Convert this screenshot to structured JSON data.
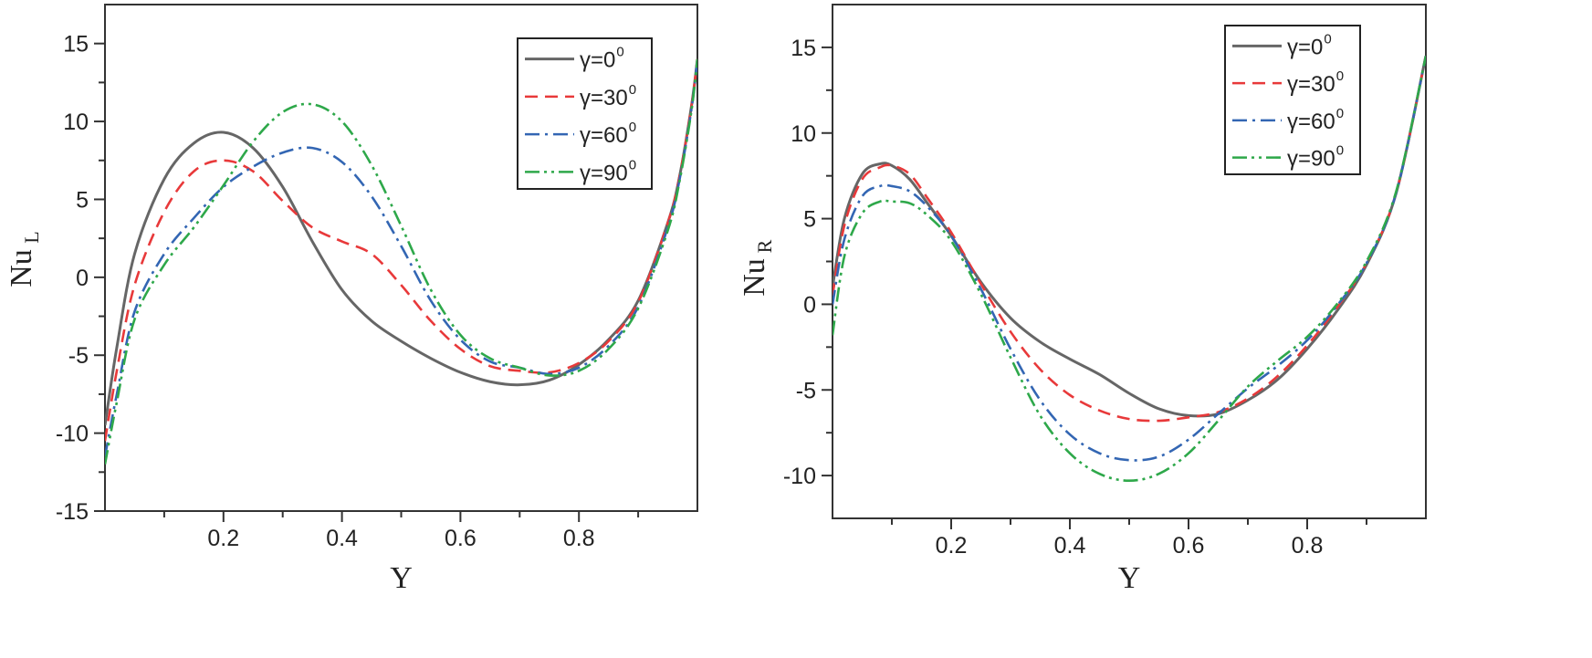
{
  "chart_data": [
    {
      "type": "line",
      "name": "left",
      "xlabel": "Y",
      "ylabel_main": "Nu",
      "ylabel_sub": "L",
      "xlim": [
        0.0,
        1.0
      ],
      "ylim": [
        -15,
        17.5
      ],
      "xticks": [
        0.2,
        0.4,
        0.6,
        0.8
      ],
      "xtick_labels": [
        "0.2",
        "0.4",
        "0.6",
        "0.8"
      ],
      "yticks": [
        -15,
        -10,
        -5,
        0,
        5,
        10,
        15
      ],
      "ytick_labels": [
        "-15",
        "-10",
        "-5",
        "0",
        "5",
        "10",
        "15"
      ],
      "legend_position": "top-right",
      "series": [
        {
          "name": "γ=0",
          "sup": "0",
          "color": "#666666",
          "dash": "solid",
          "x": [
            0.0,
            0.02,
            0.05,
            0.1,
            0.15,
            0.2,
            0.25,
            0.3,
            0.35,
            0.4,
            0.45,
            0.5,
            0.55,
            0.6,
            0.65,
            0.7,
            0.75,
            0.8,
            0.85,
            0.9,
            0.95,
            0.97,
            0.99,
            1.0
          ],
          "y": [
            -9.5,
            -4.5,
            1.5,
            6.3,
            8.6,
            9.3,
            8.3,
            5.8,
            2.3,
            -0.8,
            -2.8,
            -4.1,
            -5.2,
            -6.1,
            -6.7,
            -6.9,
            -6.6,
            -5.6,
            -4.0,
            -1.5,
            3.5,
            6.5,
            11.0,
            14.0
          ]
        },
        {
          "name": "γ=30",
          "sup": "0",
          "color": "#e8393a",
          "dash": "dashed",
          "x": [
            0.0,
            0.02,
            0.05,
            0.1,
            0.15,
            0.2,
            0.25,
            0.3,
            0.35,
            0.4,
            0.45,
            0.5,
            0.55,
            0.6,
            0.65,
            0.7,
            0.75,
            0.8,
            0.85,
            0.9,
            0.95,
            0.97,
            0.99,
            1.0
          ],
          "y": [
            -10.5,
            -6.0,
            -0.5,
            4.2,
            6.8,
            7.5,
            6.8,
            4.9,
            3.2,
            2.3,
            1.5,
            -0.5,
            -2.8,
            -4.6,
            -5.7,
            -6.0,
            -6.1,
            -5.5,
            -4.1,
            -1.6,
            3.5,
            6.5,
            11.0,
            14.0
          ]
        },
        {
          "name": "γ=60",
          "sup": "0",
          "color": "#3366b3",
          "dash": "dashdot",
          "x": [
            0.0,
            0.02,
            0.05,
            0.1,
            0.15,
            0.2,
            0.25,
            0.3,
            0.35,
            0.4,
            0.45,
            0.5,
            0.55,
            0.6,
            0.65,
            0.7,
            0.75,
            0.8,
            0.85,
            0.9,
            0.95,
            0.97,
            0.99,
            1.0
          ],
          "y": [
            -11.5,
            -7.5,
            -2.2,
            1.5,
            3.8,
            5.8,
            7.1,
            8.0,
            8.3,
            7.4,
            5.2,
            2.0,
            -1.5,
            -4.0,
            -5.4,
            -5.8,
            -6.2,
            -5.8,
            -4.4,
            -1.9,
            3.2,
            6.3,
            10.8,
            14.0
          ]
        },
        {
          "name": "γ=90",
          "sup": "0",
          "color": "#2ea84a",
          "dash": "dashdotdot",
          "x": [
            0.0,
            0.02,
            0.05,
            0.1,
            0.15,
            0.2,
            0.25,
            0.3,
            0.35,
            0.4,
            0.45,
            0.5,
            0.55,
            0.6,
            0.65,
            0.7,
            0.75,
            0.8,
            0.85,
            0.9,
            0.95,
            0.97,
            0.99,
            1.0
          ],
          "y": [
            -12.0,
            -8.0,
            -2.7,
            0.8,
            3.2,
            5.9,
            8.7,
            10.6,
            11.1,
            10.0,
            7.2,
            3.3,
            -0.8,
            -3.7,
            -5.2,
            -5.8,
            -6.3,
            -6.0,
            -4.6,
            -2.0,
            3.0,
            6.2,
            10.7,
            14.0
          ]
        }
      ]
    },
    {
      "type": "line",
      "name": "right",
      "xlabel": "Y",
      "ylabel_main": "Nu",
      "ylabel_sub": "R",
      "xlim": [
        0.0,
        1.0
      ],
      "ylim": [
        -12.5,
        17.5
      ],
      "xticks": [
        0.2,
        0.4,
        0.6,
        0.8
      ],
      "xtick_labels": [
        "0.2",
        "0.4",
        "0.6",
        "0.8"
      ],
      "yticks": [
        -10,
        -5,
        0,
        5,
        10,
        15
      ],
      "ytick_labels": [
        "-10",
        "-5",
        "0",
        "5",
        "10",
        "15"
      ],
      "legend_position": "top-right",
      "series": [
        {
          "name": "γ=0",
          "sup": "0",
          "color": "#666666",
          "dash": "solid",
          "x": [
            0.0,
            0.02,
            0.05,
            0.08,
            0.1,
            0.13,
            0.16,
            0.2,
            0.25,
            0.3,
            0.35,
            0.4,
            0.45,
            0.5,
            0.55,
            0.6,
            0.65,
            0.7,
            0.75,
            0.8,
            0.85,
            0.9,
            0.95,
            1.0
          ],
          "y": [
            1.0,
            5.0,
            7.6,
            8.2,
            8.1,
            7.3,
            5.9,
            4.0,
            1.3,
            -0.8,
            -2.2,
            -3.2,
            -4.1,
            -5.2,
            -6.1,
            -6.5,
            -6.4,
            -5.6,
            -4.4,
            -2.6,
            -0.4,
            2.3,
            6.5,
            14.5
          ]
        },
        {
          "name": "γ=30",
          "sup": "0",
          "color": "#e8393a",
          "dash": "dashed",
          "x": [
            0.0,
            0.02,
            0.05,
            0.08,
            0.1,
            0.13,
            0.16,
            0.2,
            0.25,
            0.3,
            0.35,
            0.4,
            0.45,
            0.5,
            0.55,
            0.6,
            0.65,
            0.7,
            0.75,
            0.8,
            0.85,
            0.9,
            0.95,
            1.0
          ],
          "y": [
            0.5,
            4.6,
            7.3,
            8.0,
            8.1,
            7.6,
            6.2,
            4.2,
            1.2,
            -1.6,
            -3.8,
            -5.3,
            -6.2,
            -6.7,
            -6.8,
            -6.6,
            -6.3,
            -5.5,
            -4.2,
            -2.4,
            -0.2,
            2.4,
            6.5,
            14.5
          ]
        },
        {
          "name": "γ=60",
          "sup": "0",
          "color": "#3366b3",
          "dash": "dashdot",
          "x": [
            0.0,
            0.02,
            0.05,
            0.08,
            0.1,
            0.13,
            0.16,
            0.2,
            0.25,
            0.3,
            0.35,
            0.4,
            0.45,
            0.5,
            0.55,
            0.6,
            0.65,
            0.7,
            0.75,
            0.8,
            0.85,
            0.9,
            0.95,
            1.0
          ],
          "y": [
            0.0,
            3.8,
            6.3,
            6.9,
            6.9,
            6.6,
            5.7,
            4.0,
            0.9,
            -2.6,
            -5.6,
            -7.6,
            -8.7,
            -9.1,
            -8.9,
            -7.9,
            -6.4,
            -4.9,
            -3.6,
            -2.1,
            -0.1,
            2.4,
            6.5,
            14.5
          ]
        },
        {
          "name": "γ=90",
          "sup": "0",
          "color": "#2ea84a",
          "dash": "dashdotdot",
          "x": [
            0.0,
            0.02,
            0.05,
            0.08,
            0.1,
            0.13,
            0.16,
            0.2,
            0.25,
            0.3,
            0.35,
            0.4,
            0.45,
            0.5,
            0.55,
            0.6,
            0.65,
            0.7,
            0.75,
            0.8,
            0.85,
            0.9,
            0.95,
            1.0
          ],
          "y": [
            -1.8,
            2.8,
            5.3,
            6.0,
            6.0,
            5.9,
            5.2,
            3.7,
            0.6,
            -3.1,
            -6.5,
            -8.7,
            -9.9,
            -10.3,
            -9.9,
            -8.7,
            -6.8,
            -4.8,
            -3.3,
            -1.9,
            0.0,
            2.5,
            6.6,
            14.5
          ]
        }
      ]
    }
  ]
}
